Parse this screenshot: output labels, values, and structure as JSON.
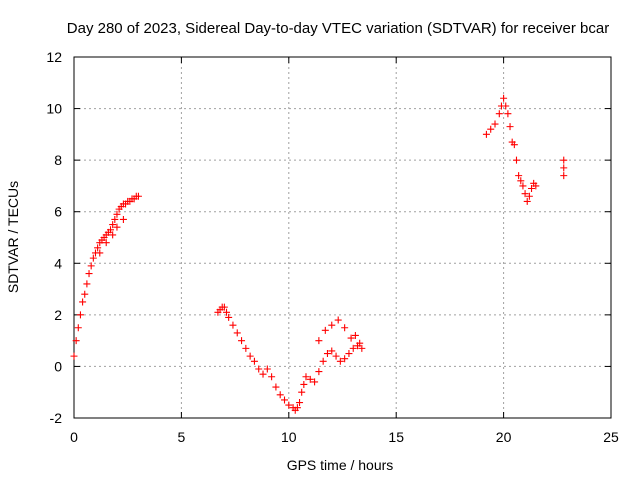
{
  "chart_data": {
    "type": "scatter",
    "title": "Day 280 of 2023, Sidereal Day-to-day VTEC variation (SDTVAR) for receiver bcar",
    "xlabel": "GPS time / hours",
    "ylabel": "SDTVAR / TECUs",
    "xlim": [
      0,
      25
    ],
    "ylim": [
      -2,
      12
    ],
    "xticks": [
      0,
      5,
      10,
      15,
      20,
      25
    ],
    "yticks": [
      -2,
      0,
      2,
      4,
      6,
      8,
      10,
      12
    ],
    "grid": true,
    "marker": "+",
    "color": "#ff0000",
    "series": [
      {
        "name": "SDTVAR",
        "x": [
          0.0,
          0.1,
          0.2,
          0.3,
          0.4,
          0.5,
          0.6,
          0.7,
          0.8,
          0.9,
          1.0,
          1.1,
          1.2,
          1.3,
          1.4,
          1.5,
          1.6,
          1.7,
          1.8,
          1.9,
          2.0,
          2.1,
          2.2,
          2.3,
          2.4,
          2.5,
          2.6,
          2.7,
          2.8,
          2.9,
          3.0,
          1.2,
          1.5,
          1.8,
          2.0,
          2.3,
          6.7,
          6.8,
          6.9,
          7.0,
          7.1,
          7.2,
          7.4,
          7.6,
          7.8,
          8.0,
          8.2,
          8.4,
          8.6,
          8.8,
          9.0,
          9.2,
          9.4,
          9.6,
          9.8,
          10.0,
          10.2,
          10.3,
          10.4,
          10.5,
          10.6,
          10.7,
          10.8,
          11.0,
          11.2,
          11.4,
          11.6,
          11.8,
          12.0,
          12.2,
          12.4,
          12.6,
          12.8,
          13.0,
          13.2,
          13.4,
          11.4,
          11.7,
          12.0,
          12.3,
          12.6,
          12.9,
          13.1,
          13.3,
          19.2,
          19.4,
          19.6,
          19.8,
          19.9,
          20.0,
          20.1,
          20.2,
          20.3,
          20.4,
          20.5,
          20.6,
          20.7,
          20.8,
          20.9,
          21.0,
          21.1,
          21.2,
          21.3,
          21.4,
          21.5,
          22.8,
          22.8,
          22.8
        ],
        "y": [
          0.4,
          1.0,
          1.5,
          2.0,
          2.5,
          2.8,
          3.2,
          3.6,
          3.9,
          4.2,
          4.4,
          4.6,
          4.8,
          4.9,
          5.0,
          5.1,
          5.2,
          5.3,
          5.5,
          5.7,
          5.9,
          6.1,
          6.2,
          6.3,
          6.3,
          6.4,
          6.4,
          6.5,
          6.5,
          6.6,
          6.6,
          4.4,
          4.8,
          5.1,
          5.4,
          5.7,
          2.1,
          2.2,
          2.3,
          2.3,
          2.1,
          1.9,
          1.6,
          1.3,
          1.0,
          0.7,
          0.4,
          0.2,
          -0.1,
          -0.3,
          -0.1,
          -0.4,
          -0.8,
          -1.1,
          -1.3,
          -1.5,
          -1.6,
          -1.7,
          -1.6,
          -1.4,
          -1.0,
          -0.7,
          -0.4,
          -0.5,
          -0.6,
          -0.2,
          0.2,
          0.5,
          0.6,
          0.4,
          0.2,
          0.3,
          0.5,
          0.7,
          0.8,
          0.7,
          1.0,
          1.4,
          1.6,
          1.8,
          1.5,
          1.1,
          1.2,
          0.9,
          9.0,
          9.2,
          9.4,
          9.8,
          10.1,
          10.4,
          10.1,
          9.8,
          9.3,
          8.7,
          8.6,
          8.0,
          7.4,
          7.2,
          7.0,
          6.7,
          6.4,
          6.6,
          6.9,
          7.1,
          7.0,
          7.4,
          7.7,
          8.0
        ]
      }
    ]
  }
}
